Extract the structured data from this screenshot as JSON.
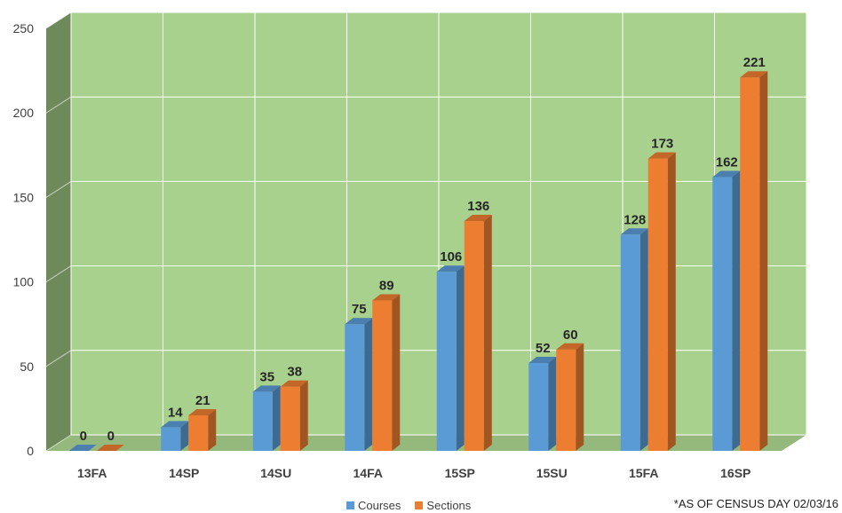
{
  "chart_data": {
    "type": "bar",
    "categories": [
      "13FA",
      "14SP",
      "14SU",
      "14FA",
      "15SP",
      "15SU",
      "15FA",
      "16SP"
    ],
    "series": [
      {
        "name": "Courses",
        "values": [
          0,
          14,
          35,
          75,
          106,
          52,
          128,
          162
        ],
        "color": "#5b9bd5"
      },
      {
        "name": "Sections",
        "values": [
          0,
          21,
          38,
          89,
          136,
          60,
          173,
          221
        ],
        "color": "#ed7d31"
      }
    ],
    "ylim": [
      0,
      250
    ],
    "yticks": [
      0,
      50,
      100,
      150,
      200,
      250
    ],
    "grid": true,
    "legend_position": "bottom",
    "plot_background": "#a9d18e",
    "side_wall_color": "#6e8a5a",
    "annotation": "*AS OF CENSUS DAY  02/03/16"
  }
}
